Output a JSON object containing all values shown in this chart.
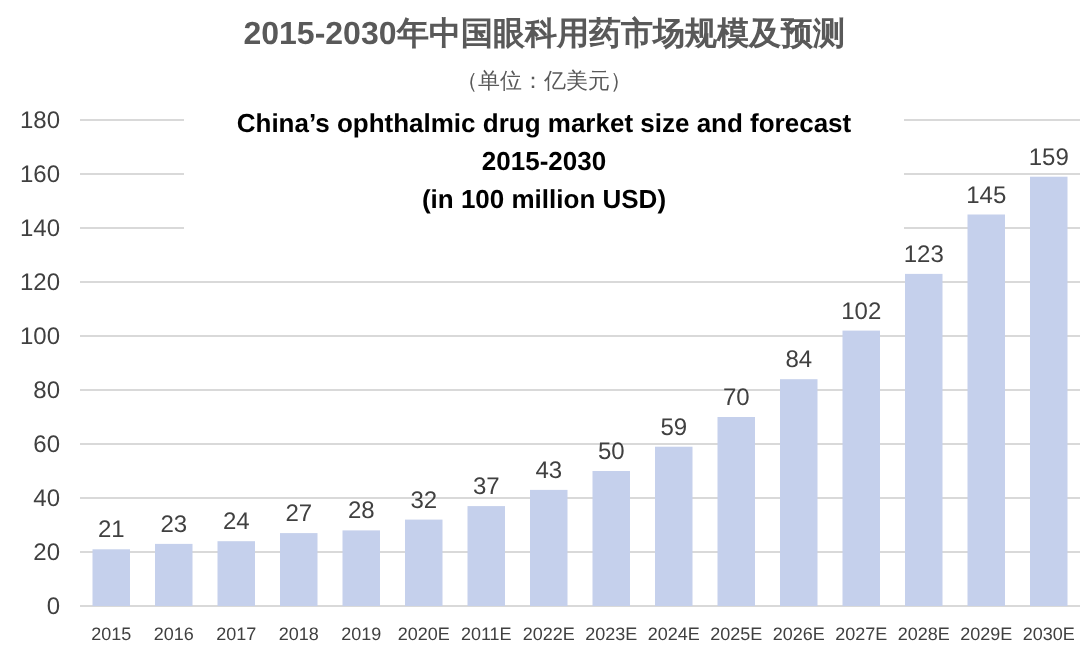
{
  "chart_data": {
    "type": "bar",
    "title": "2015-2030年中国眼科用药市场规模及预测",
    "subtitle": "（单位：亿美元）",
    "annotations": [
      "China’s ophthalmic drug market size and forecast 2015-2030",
      "(in 100 million USD)"
    ],
    "categories": [
      "2015",
      "2016",
      "2017",
      "2018",
      "2019",
      "2020E",
      "2011E",
      "2022E",
      "2023E",
      "2024E",
      "2025E",
      "2026E",
      "2027E",
      "2028E",
      "2029E",
      "2030E"
    ],
    "values": [
      21,
      23,
      24,
      27,
      28,
      32,
      37,
      43,
      50,
      59,
      70,
      84,
      102,
      123,
      145,
      159
    ],
    "color": "#c5d0ec",
    "ylim": [
      0,
      180
    ],
    "yticks": [
      0,
      20,
      40,
      60,
      80,
      100,
      120,
      140,
      160,
      180
    ],
    "grid": "y",
    "data_labels": true
  }
}
